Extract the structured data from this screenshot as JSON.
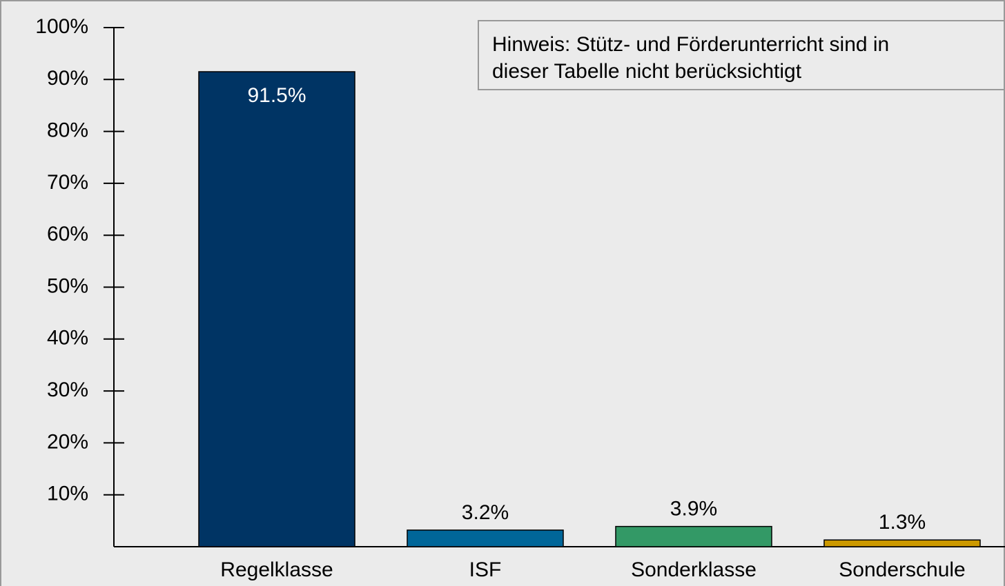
{
  "chart_data": {
    "type": "bar",
    "annotation": [
      "Hinweis: Stütz- und Förderunterricht sind in",
      "dieser Tabelle nicht berücksichtigt"
    ],
    "categories": [
      "Regelklasse",
      "ISF",
      "Sonderklasse",
      "Sonderschule"
    ],
    "values": [
      91.5,
      3.2,
      3.9,
      1.3
    ],
    "value_labels": [
      "91.5%",
      "3.2%",
      "3.9%",
      "1.3%"
    ],
    "colors": [
      "#003464",
      "#006699",
      "#339966",
      "#cc9900"
    ],
    "ylim": [
      0,
      100
    ],
    "yticks": [
      {
        "value": 10,
        "label": "10%"
      },
      {
        "value": 20,
        "label": "20%"
      },
      {
        "value": 30,
        "label": "30%"
      },
      {
        "value": 40,
        "label": "40%"
      },
      {
        "value": 50,
        "label": "50%"
      },
      {
        "value": 60,
        "label": "60%"
      },
      {
        "value": 70,
        "label": "70%"
      },
      {
        "value": 80,
        "label": "80%"
      },
      {
        "value": 90,
        "label": "90%"
      },
      {
        "value": 100,
        "label": "100%"
      }
    ]
  }
}
